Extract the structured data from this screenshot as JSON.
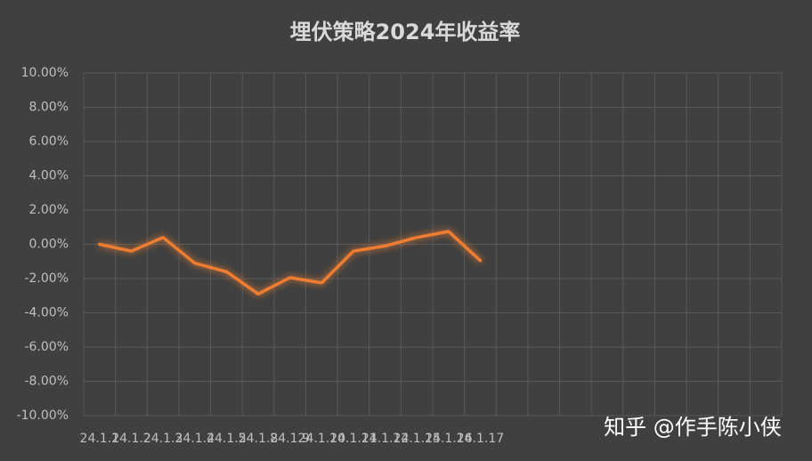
{
  "chart_data": {
    "type": "line",
    "title": "埋伏策略2024年收益率",
    "categories": [
      "24.1.1",
      "24.1.2",
      "24.1.3",
      "24.1.4",
      "24.1.5",
      "24.1.8",
      "24.1.9",
      "24.1.10",
      "24.1.11",
      "24.1.12",
      "24.1.15",
      "24.1.16",
      "24.1.17",
      null,
      null,
      null,
      null,
      null,
      null,
      null,
      null,
      null
    ],
    "series": [
      {
        "color": "#5b9bd5",
        "values": [
          0,
          0,
          0,
          0,
          0,
          0,
          0,
          0,
          0,
          0,
          0,
          0,
          0,
          null,
          null,
          null,
          null,
          null,
          null,
          null,
          null,
          null
        ]
      },
      {
        "color": "#ed7d31",
        "values": [
          0,
          -0.4,
          0.4,
          -1.1,
          -1.6,
          -2.9,
          -1.95,
          -2.25,
          -0.4,
          -0.1,
          0.4,
          0.75,
          -0.95,
          null,
          null,
          null,
          null,
          null,
          null,
          null,
          null,
          null
        ]
      }
    ],
    "ylim": [
      -10,
      10
    ],
    "yticks": [
      {
        "value": -10,
        "label": "-10.00%"
      },
      {
        "value": -8,
        "label": "-8.00%"
      },
      {
        "value": -6,
        "label": "-6.00%"
      },
      {
        "value": -4,
        "label": "-4.00%"
      },
      {
        "value": -2,
        "label": "-2.00%"
      },
      {
        "value": 0,
        "label": "0.00%"
      },
      {
        "value": 2,
        "label": "2.00%"
      },
      {
        "value": 4,
        "label": "4.00%"
      },
      {
        "value": 6,
        "label": "6.00%"
      },
      {
        "value": 8,
        "label": "8.00%"
      },
      {
        "value": 10,
        "label": "10.00%"
      }
    ],
    "grid": true,
    "watermark": "知乎 @作手陈小侠"
  }
}
